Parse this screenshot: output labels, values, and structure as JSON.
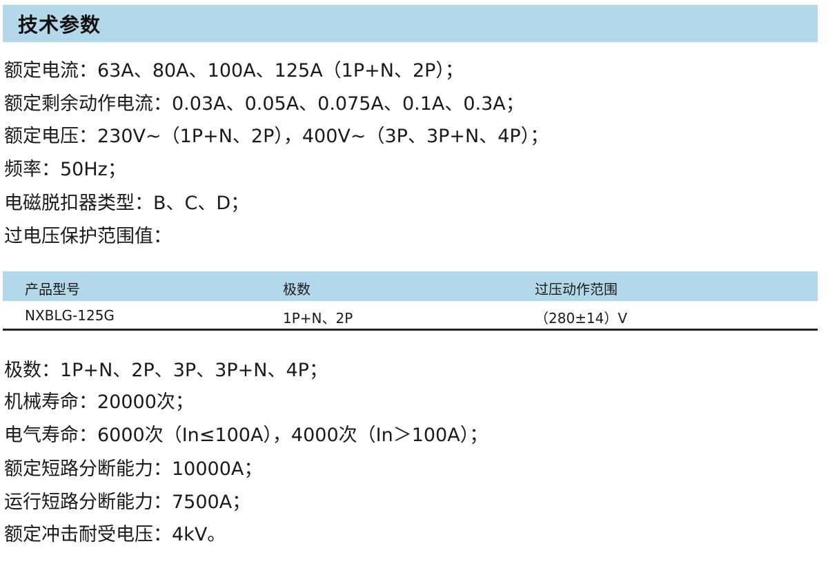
{
  "section_title": "技术参数",
  "specs_top": [
    "额定电流：63A、80A、100A、125A（1P+N、2P）；",
    "额定剩余动作电流：0.03A、0.05A、0.075A、0.1A、0.3A；",
    "额定电压：230V~（1P+N、2P），400V~（3P、3P+N、4P）；",
    "频率：50Hz；",
    "电磁脱扣器类型：B、C、D；",
    "过电压保护范围值："
  ],
  "table": {
    "headers": [
      "产品型号",
      "极数",
      "过压动作范围"
    ],
    "rows": [
      [
        "NXBLG-125G",
        "1P+N、2P",
        "（280±14）V"
      ]
    ]
  },
  "specs_bottom": [
    "极数：1P+N、2P、3P、3P+N、4P；",
    "机械寿命：20000次；",
    "电气寿命：6000次（In≤100A），4000次（In＞100A）；",
    "额定短路分断能力：10000A；",
    "运行短路分断能力：7500A；",
    "额定冲击耐受电压：4kV。"
  ],
  "colors": {
    "band": "#b3d8e9",
    "text": "#1a1a1a"
  }
}
